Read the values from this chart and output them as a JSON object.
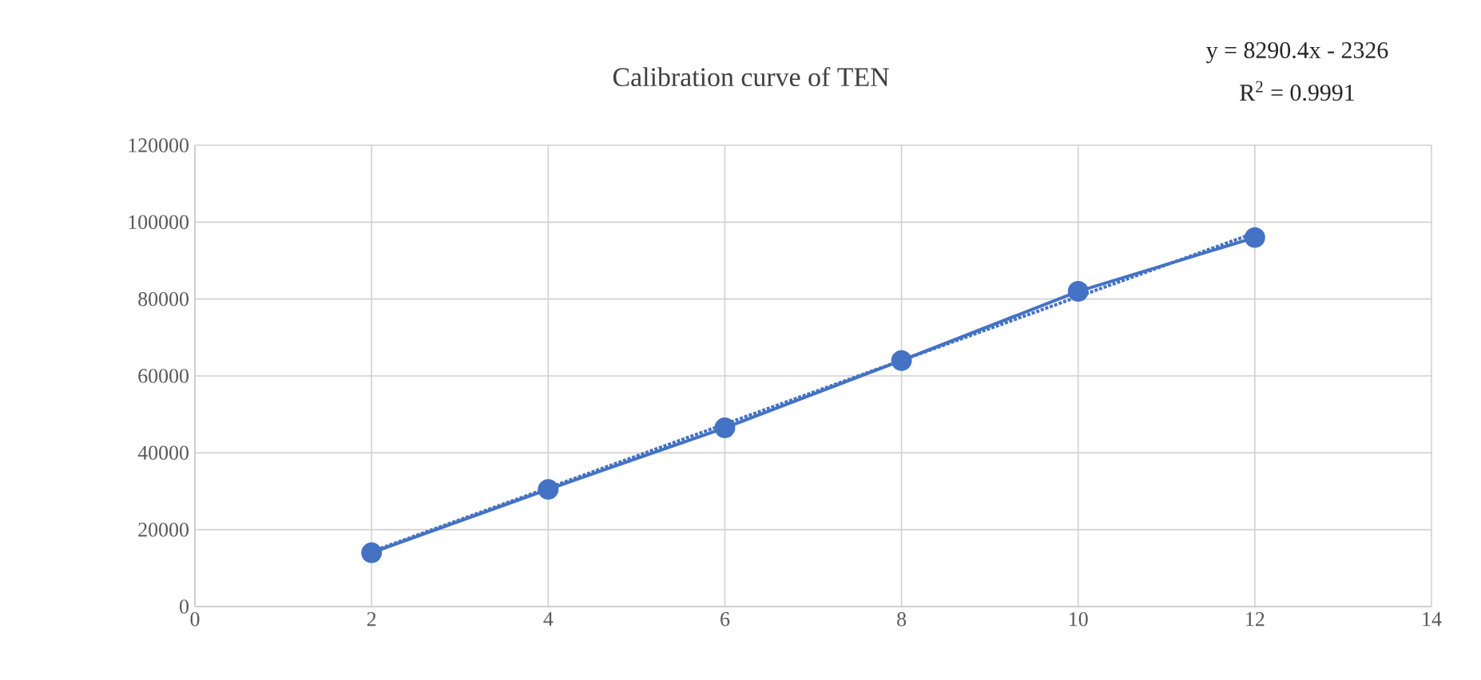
{
  "chart_data": {
    "type": "line",
    "title": "Calibration curve of TEN",
    "annotations": [
      "y = 8290.4x - 2326",
      "R$^{2}$ = 0.9991"
    ],
    "series": [
      {
        "color": "#4472c4",
        "marker": "circle",
        "line_style": "solid",
        "x": [
          2,
          4,
          6,
          8,
          10,
          12
        ],
        "values": [
          14000,
          30500,
          46500,
          64000,
          82000,
          96000
        ]
      },
      {
        "color": "#4472c4",
        "marker": "none",
        "line_style": "dotted",
        "x": [
          2,
          12
        ],
        "values": [
          14300,
          97200
        ]
      }
    ],
    "xlim": [
      0,
      14
    ],
    "xticks": [
      0,
      2,
      4,
      6,
      8,
      10,
      12,
      14
    ],
    "ylim": [
      0,
      120000
    ],
    "yticks": [
      0,
      20000,
      40000,
      60000,
      80000,
      100000,
      120000
    ],
    "grid": true
  }
}
